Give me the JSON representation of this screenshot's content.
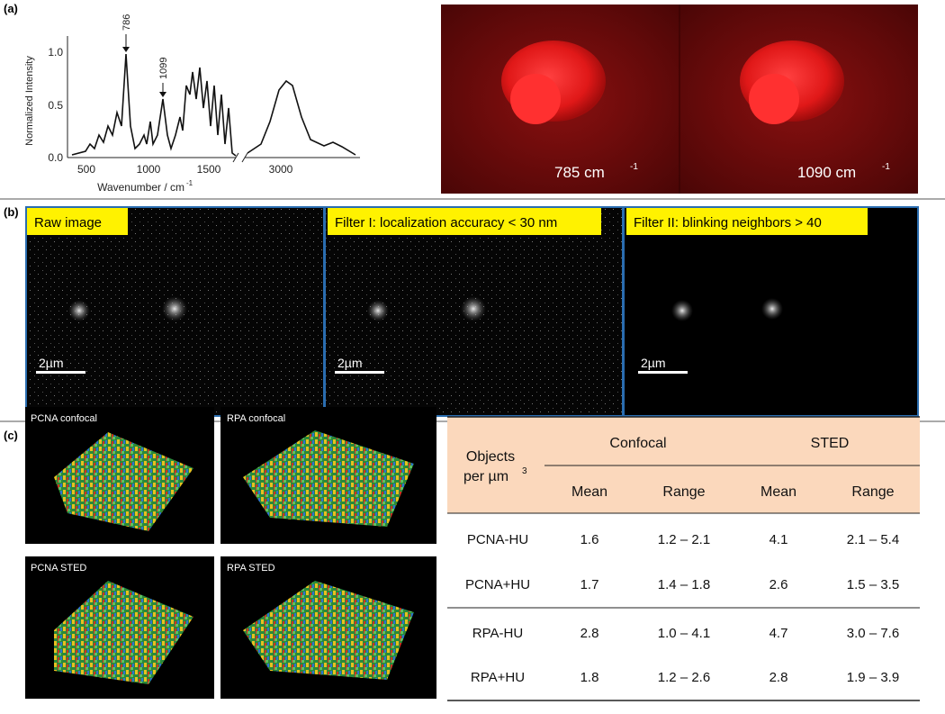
{
  "panel_a": {
    "label": "(a)",
    "spectrum": {
      "y_axis_label": "Normalized Intensity",
      "x_axis_label": "Wavenumber / cm",
      "x_axis_label_sup": "-1",
      "yticks": [
        "1.0",
        "0.5",
        "0.0"
      ],
      "xticks": [
        "500",
        "1000",
        "1500",
        "3000"
      ],
      "peak_labels": [
        "786",
        "1099"
      ]
    },
    "images": [
      {
        "label": "785 cm",
        "sup": "-1"
      },
      {
        "label": "1090 cm",
        "sup": "-1"
      }
    ]
  },
  "panel_b": {
    "label": "(b)",
    "images": [
      {
        "title": "Raw image",
        "scale": "2µm"
      },
      {
        "title": "Filter I:  localization accuracy < 30 nm",
        "scale": "2µm"
      },
      {
        "title": "Filter II:  blinking neighbors > 40",
        "scale": "2µm"
      }
    ]
  },
  "panel_c": {
    "label": "(c)",
    "images": [
      "PCNA confocal",
      "RPA confocal",
      "PCNA STED",
      "RPA STED"
    ],
    "table": {
      "corner": {
        "line1": "Objects",
        "line2": "per µm",
        "sup": "3"
      },
      "groups": [
        "Confocal",
        "STED"
      ],
      "subheaders": [
        "Mean",
        "Range",
        "Mean",
        "Range"
      ],
      "rows": [
        [
          "PCNA-HU",
          "1.6",
          "1.2 – 2.1",
          "4.1",
          "2.1 – 5.4"
        ],
        [
          "PCNA+HU",
          "1.7",
          "1.4 – 1.8",
          "2.6",
          "1.5 – 3.5"
        ],
        [
          "RPA-HU",
          "2.8",
          "1.0 – 4.1",
          "4.7",
          "3.0 – 7.6"
        ],
        [
          "RPA+HU",
          "1.8",
          "1.2 – 2.6",
          "2.8",
          "1.9 – 3.9"
        ]
      ]
    }
  }
}
